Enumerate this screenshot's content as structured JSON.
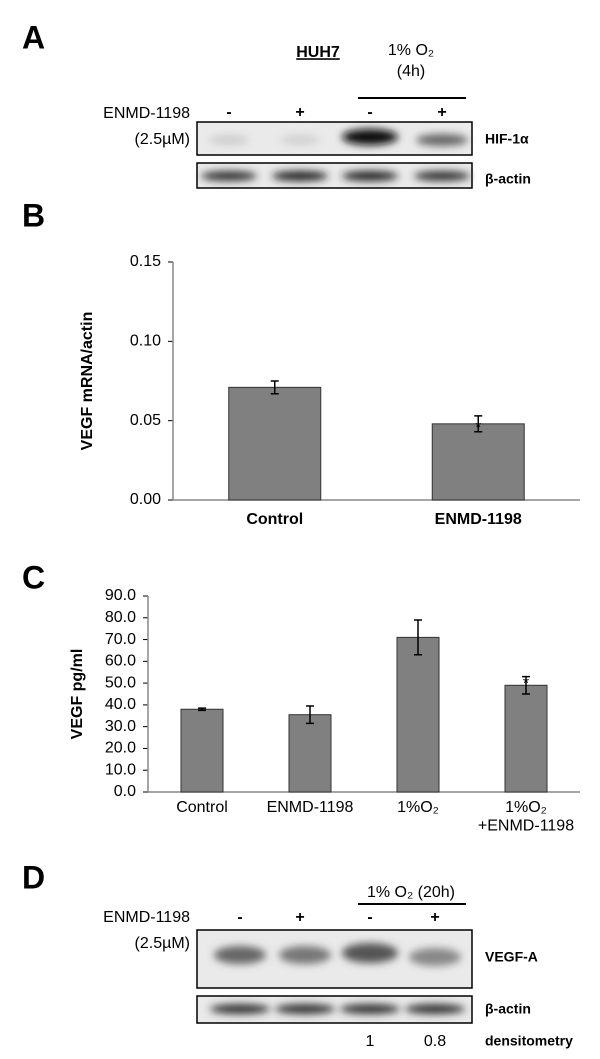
{
  "panel_a": {
    "label": "A",
    "cell_line": "HUH7",
    "condition": [
      "1% O₂",
      "(4h)"
    ],
    "treatment": [
      "ENMD-1198",
      "(2.5µM)"
    ],
    "signs": [
      "-",
      "+",
      "-",
      "+"
    ],
    "rows": [
      "HIF-1α",
      "β-actin"
    ]
  },
  "chart_data": [
    {
      "type": "bar",
      "panel": "B",
      "ylabel": "VEGF mRNA/actin",
      "categories": [
        "Control",
        "ENMD-1198"
      ],
      "values": [
        0.071,
        0.048
      ],
      "errors": [
        0.004,
        0.005
      ],
      "color": "#808080",
      "ylim": [
        0,
        0.15
      ],
      "yticks": [
        {
          "value": 0,
          "label": "0.00"
        },
        {
          "value": 0.05,
          "label": "0.05"
        },
        {
          "value": 0.1,
          "label": "0.10"
        },
        {
          "value": 0.15,
          "label": "0.15"
        }
      ],
      "annotation": "*",
      "grid": false
    },
    {
      "type": "bar",
      "panel": "C",
      "ylabel": "VEGF pg/ml",
      "categories": [
        "Control",
        "ENMD-1198",
        "1%O₂",
        "1%O₂\n+ENMD-1198"
      ],
      "values": [
        38,
        35.5,
        71,
        49
      ],
      "errors": [
        0.5,
        4,
        8,
        4
      ],
      "color": "#808080",
      "ylim": [
        0,
        90
      ],
      "yticks": [
        {
          "value": 0,
          "label": "0.0"
        },
        {
          "value": 10,
          "label": "10.0"
        },
        {
          "value": 20,
          "label": "20.0"
        },
        {
          "value": 30,
          "label": "30.0"
        },
        {
          "value": 40,
          "label": "40.0"
        },
        {
          "value": 50,
          "label": "50.0"
        },
        {
          "value": 60,
          "label": "60.0"
        },
        {
          "value": 70,
          "label": "70.0"
        },
        {
          "value": 80,
          "label": "80.0"
        },
        {
          "value": 90,
          "label": "90.0"
        }
      ],
      "annotation": "*",
      "grid": false
    }
  ],
  "panel_d": {
    "label": "D",
    "condition": "1% O₂ (20h)",
    "treatment": [
      "ENMD-1198",
      "(2.5µM)"
    ],
    "signs": [
      "-",
      "+",
      "-",
      "+"
    ],
    "rows": [
      "VEGF-A",
      "β-actin"
    ],
    "densitometry": {
      "values": [
        1,
        0.8
      ],
      "label": "densitometry"
    }
  }
}
